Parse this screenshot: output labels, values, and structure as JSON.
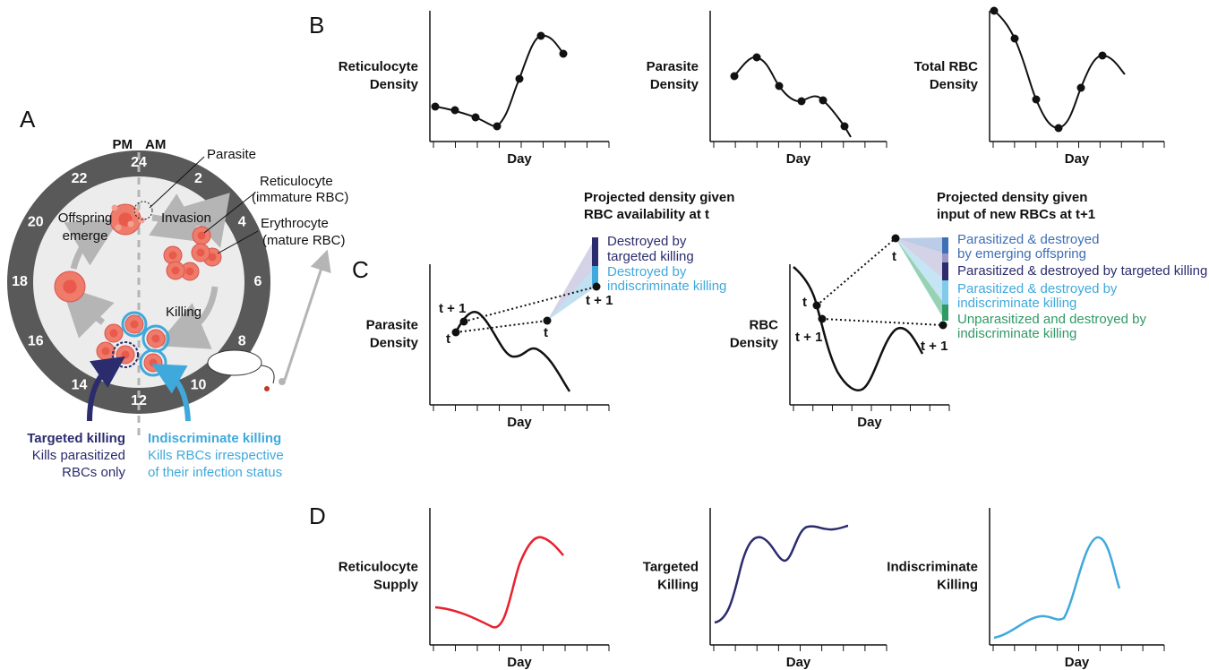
{
  "panel_a": {
    "label": "A",
    "pm": "PM",
    "am": "AM",
    "hours": [
      "24",
      "2",
      "4",
      "6",
      "8",
      "10",
      "12",
      "14",
      "16",
      "18",
      "20",
      "22"
    ],
    "parasite": "Parasite",
    "reticulocyte": [
      "Reticulocyte",
      "(immature RBC)"
    ],
    "erythrocyte": [
      "Erythrocyte",
      "(mature RBC)"
    ],
    "invasion": "Invasion",
    "offspring": [
      "Offspring",
      "emerge"
    ],
    "killing": "Killing",
    "targeted": {
      "title": "Targeted killing",
      "lines": [
        "Kills parasitized",
        "RBCs only"
      ]
    },
    "indiscriminate": {
      "title": "Indiscriminate killing",
      "lines": [
        "Kills RBCs irrespective",
        "of their infection status"
      ]
    }
  },
  "panel_b": {
    "label": "B",
    "plots": [
      {
        "y_label": [
          "Reticulocyte",
          "Density"
        ],
        "x_label": "Day"
      },
      {
        "y_label": [
          "Parasite",
          "Density"
        ],
        "x_label": "Day"
      },
      {
        "y_label": [
          "Total RBC",
          "Density"
        ],
        "x_label": "Day"
      }
    ]
  },
  "panel_c": {
    "label": "C",
    "left": {
      "title": [
        "Projected density given",
        "RBC availability at t"
      ],
      "y_label": [
        "Parasite",
        "Density"
      ],
      "x_label": "Day",
      "points": [
        "t",
        "t + 1",
        "t",
        "t + 1"
      ],
      "legend": [
        [
          "Destroyed by",
          "targeted killing"
        ],
        [
          "Destroyed by",
          "indiscriminate killing"
        ]
      ]
    },
    "right": {
      "title": [
        "Projected density given",
        "input of new RBCs at t+1"
      ],
      "y_label": [
        "RBC",
        "Density"
      ],
      "x_label": "Day",
      "points": [
        "t",
        "t + 1",
        "t",
        "t + 1"
      ],
      "legend": [
        [
          "Parasitized & destroyed",
          "by emerging offspring"
        ],
        [
          "Parasitized & destroyed by targeted killing"
        ],
        [
          "Parasitized & destroyed by",
          "indiscriminate killing"
        ],
        [
          "Unparasitized and destroyed by",
          "indiscriminate killing"
        ]
      ]
    }
  },
  "panel_d": {
    "label": "D",
    "plots": [
      {
        "y_label": [
          "Reticulocyte",
          "Supply"
        ],
        "x_label": "Day"
      },
      {
        "y_label": [
          "Targeted",
          "Killing"
        ],
        "x_label": "Day"
      },
      {
        "y_label": [
          "Indiscriminate",
          "Killing"
        ],
        "x_label": "Day"
      }
    ]
  }
}
